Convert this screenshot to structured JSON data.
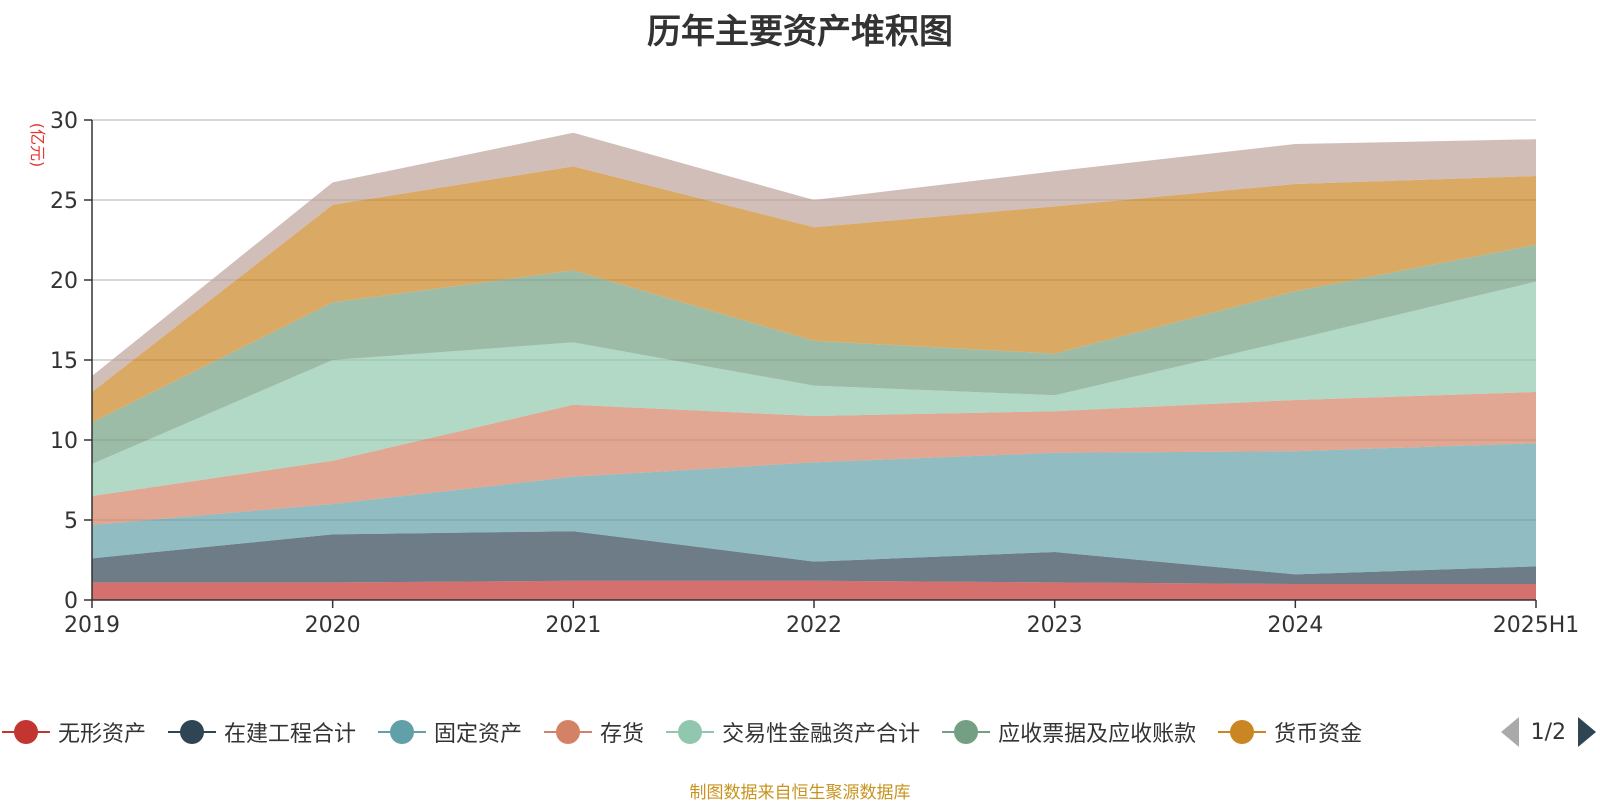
{
  "chart_data": {
    "type": "area",
    "stacked": true,
    "title": "历年主要资产堆积图",
    "ylabel": "(亿元)",
    "xlabel": "",
    "categories": [
      "2019",
      "2020",
      "2021",
      "2022",
      "2023",
      "2024",
      "2025H1"
    ],
    "ylim": [
      0,
      30
    ],
    "yticks": [
      0,
      5,
      10,
      15,
      20,
      25,
      30
    ],
    "grid": true,
    "series": [
      {
        "name": "无形资产",
        "color": "#c23531",
        "values": [
          1.1,
          1.1,
          1.2,
          1.2,
          1.1,
          1.0,
          1.0
        ]
      },
      {
        "name": "在建工程合计",
        "color": "#2f4554",
        "values": [
          1.5,
          3.0,
          3.1,
          1.2,
          1.9,
          0.6,
          1.1
        ]
      },
      {
        "name": "固定资产",
        "color": "#61a0a8",
        "values": [
          2.1,
          1.9,
          3.4,
          6.2,
          6.2,
          7.7,
          7.7
        ]
      },
      {
        "name": "存货",
        "color": "#d48265",
        "values": [
          1.8,
          2.7,
          4.5,
          2.9,
          2.6,
          3.2,
          3.2
        ]
      },
      {
        "name": "交易性金融资产合计",
        "color": "#91c7ae",
        "values": [
          2.0,
          6.3,
          3.9,
          1.9,
          1.0,
          3.8,
          6.9
        ]
      },
      {
        "name": "应收票据及应收账款",
        "color": "#749f83",
        "values": [
          2.6,
          3.6,
          4.5,
          2.8,
          2.6,
          3.0,
          2.3
        ]
      },
      {
        "name": "货币资金",
        "color": "#ca8622",
        "values": [
          1.9,
          6.1,
          6.5,
          7.1,
          9.2,
          6.7,
          4.3
        ]
      },
      {
        "name": "",
        "color": "#bda29a",
        "values": [
          1.0,
          1.4,
          2.1,
          1.7,
          2.2,
          2.5,
          2.3
        ]
      }
    ],
    "legend_position": "bottom"
  },
  "legend": {
    "page_text": "1/2"
  },
  "source_note": "制图数据来自恒生聚源数据库"
}
